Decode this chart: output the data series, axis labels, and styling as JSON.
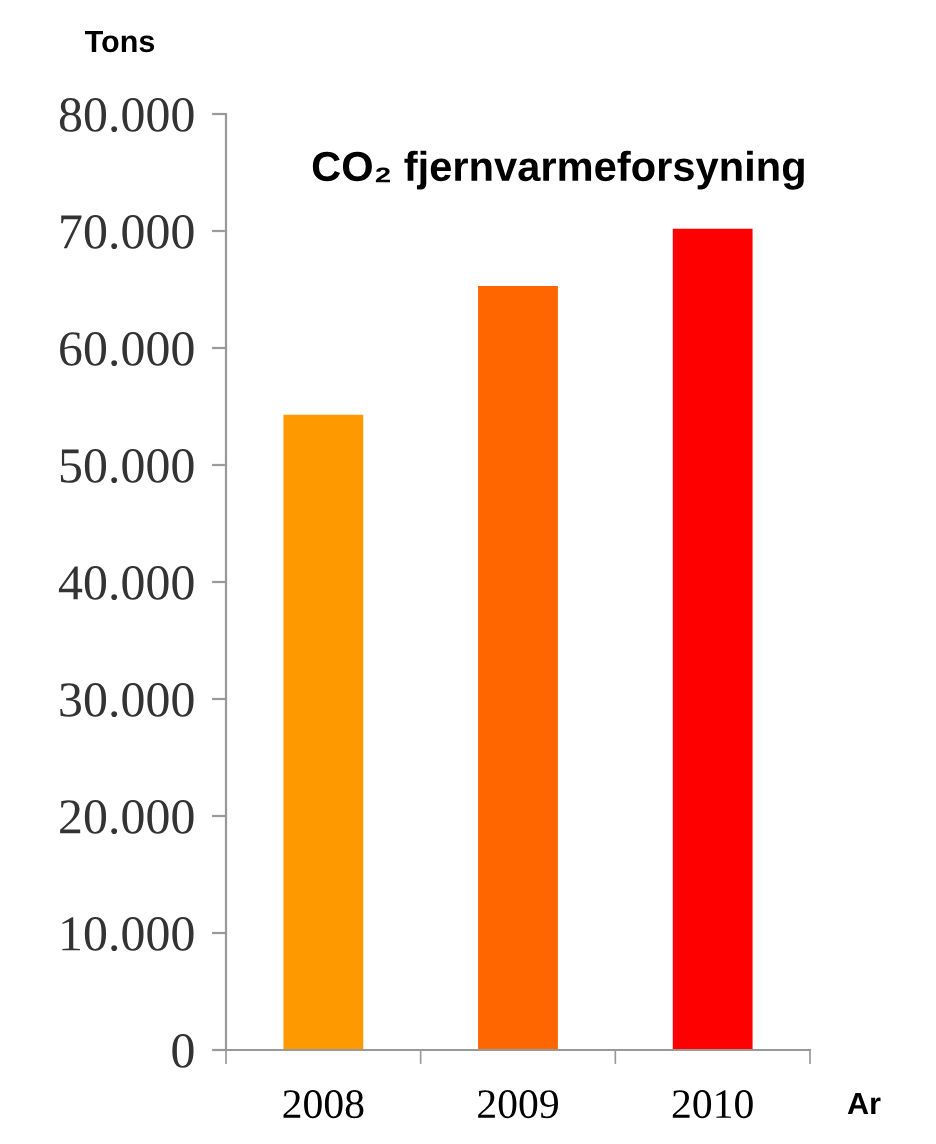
{
  "chart_data": {
    "type": "bar",
    "title": "CO₂ fjernvarmeforsyning",
    "ylabel": "Tons",
    "xlabel": "Ar",
    "categories": [
      "2008",
      "2009",
      "2010"
    ],
    "values": [
      54300,
      65300,
      70200
    ],
    "colors": [
      "#ff9900",
      "#ff6600",
      "#ff0000"
    ],
    "ylim": [
      0,
      80000
    ],
    "yticks": [
      {
        "value": 0,
        "label": "0"
      },
      {
        "value": 10000,
        "label": "10.000"
      },
      {
        "value": 20000,
        "label": "20.000"
      },
      {
        "value": 30000,
        "label": "30.000"
      },
      {
        "value": 40000,
        "label": "40.000"
      },
      {
        "value": 50000,
        "label": "50.000"
      },
      {
        "value": 60000,
        "label": "60.000"
      },
      {
        "value": 70000,
        "label": "70.000"
      },
      {
        "value": 80000,
        "label": "80.000"
      }
    ],
    "grid": false,
    "legend": false
  }
}
